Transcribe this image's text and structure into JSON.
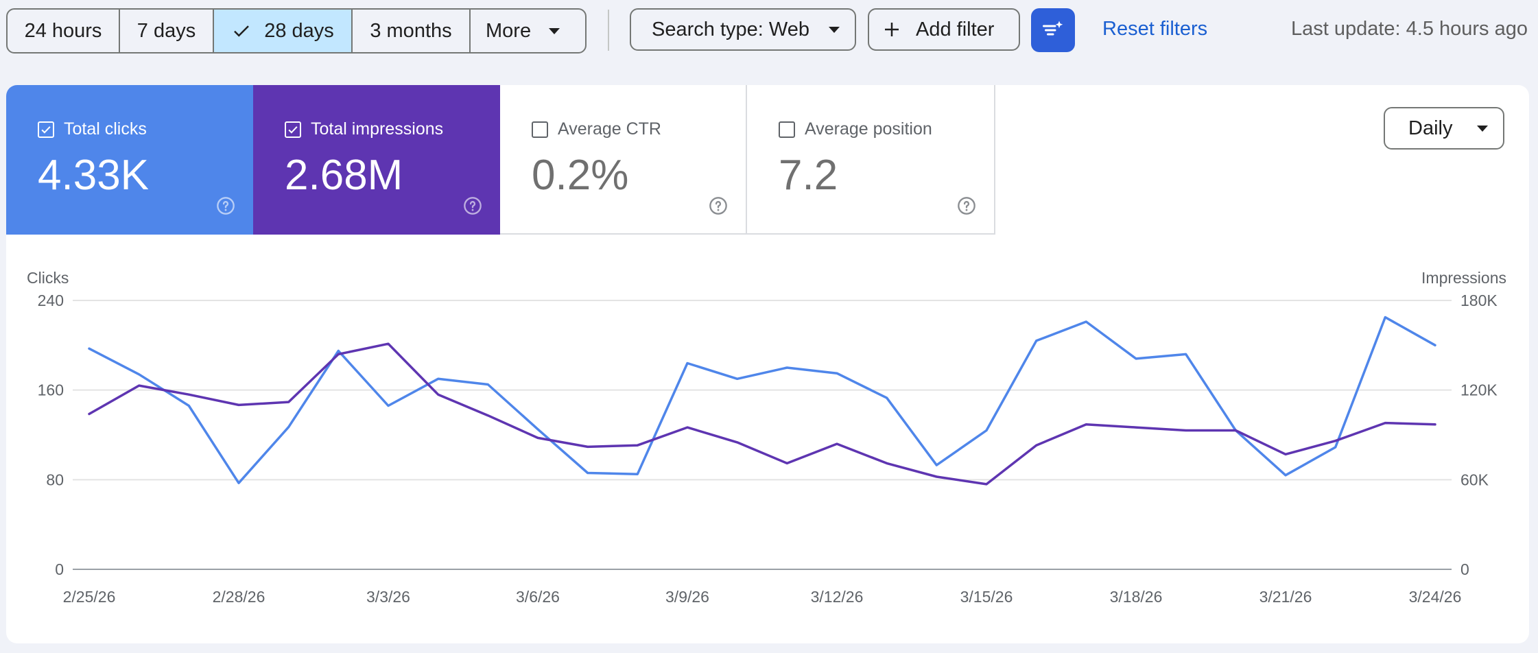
{
  "toolbar": {
    "ranges": [
      {
        "label": "24 hours",
        "selected": false
      },
      {
        "label": "7 days",
        "selected": false
      },
      {
        "label": "28 days",
        "selected": true
      },
      {
        "label": "3 months",
        "selected": false
      },
      {
        "label": "More",
        "selected": false
      }
    ],
    "search_type": "Search type: Web",
    "add_filter": "Add filter",
    "reset_filters": "Reset filters",
    "last_update": "Last update: 4.5 hours ago"
  },
  "metrics": [
    {
      "label": "Total clicks",
      "value": "4.33K",
      "checked": true,
      "color": "#4f86ea"
    },
    {
      "label": "Total impressions",
      "value": "2.68M",
      "checked": true,
      "color": "#5e35b1"
    },
    {
      "label": "Average CTR",
      "value": "0.2%",
      "checked": false
    },
    {
      "label": "Average position",
      "value": "7.2",
      "checked": false
    }
  ],
  "granularity": "Daily",
  "chart_data": {
    "type": "line",
    "x": [
      "2/25/26",
      "2/26/26",
      "2/27/26",
      "2/28/26",
      "3/1/26",
      "3/2/26",
      "3/3/26",
      "3/4/26",
      "3/5/26",
      "3/6/26",
      "3/7/26",
      "3/8/26",
      "3/9/26",
      "3/10/26",
      "3/11/26",
      "3/12/26",
      "3/13/26",
      "3/14/26",
      "3/15/26",
      "3/16/26",
      "3/17/26",
      "3/18/26",
      "3/19/26",
      "3/20/26",
      "3/21/26",
      "3/22/26",
      "3/23/26",
      "3/24/26"
    ],
    "xticks": [
      "2/25/26",
      "2/28/26",
      "3/3/26",
      "3/6/26",
      "3/9/26",
      "3/12/26",
      "3/15/26",
      "3/18/26",
      "3/21/26",
      "3/24/26"
    ],
    "left_axis": {
      "label": "Clicks",
      "ylim": [
        0,
        240
      ],
      "ticks": [
        "0",
        "80",
        "160",
        "240"
      ]
    },
    "right_axis": {
      "label": "Impressions",
      "ylim": [
        0,
        180000
      ],
      "ticks": [
        "0",
        "60K",
        "120K",
        "180K"
      ]
    },
    "grid": true,
    "series": [
      {
        "name": "Total clicks",
        "axis": "left",
        "color": "#4f86ea",
        "values": [
          197,
          174,
          146,
          77,
          127,
          195,
          146,
          170,
          165,
          125,
          86,
          85,
          184,
          170,
          180,
          175,
          153,
          93,
          124,
          204,
          221,
          188,
          192,
          124,
          84,
          109,
          225,
          200
        ]
      },
      {
        "name": "Total impressions",
        "axis": "right",
        "color": "#5e35b1",
        "values": [
          104000,
          123000,
          117000,
          110000,
          112000,
          144000,
          151000,
          117000,
          103000,
          88000,
          82000,
          83000,
          95000,
          85000,
          71000,
          84000,
          71000,
          62000,
          57000,
          83000,
          97000,
          95000,
          93000,
          93000,
          77000,
          86000,
          98000,
          97000
        ]
      }
    ]
  }
}
